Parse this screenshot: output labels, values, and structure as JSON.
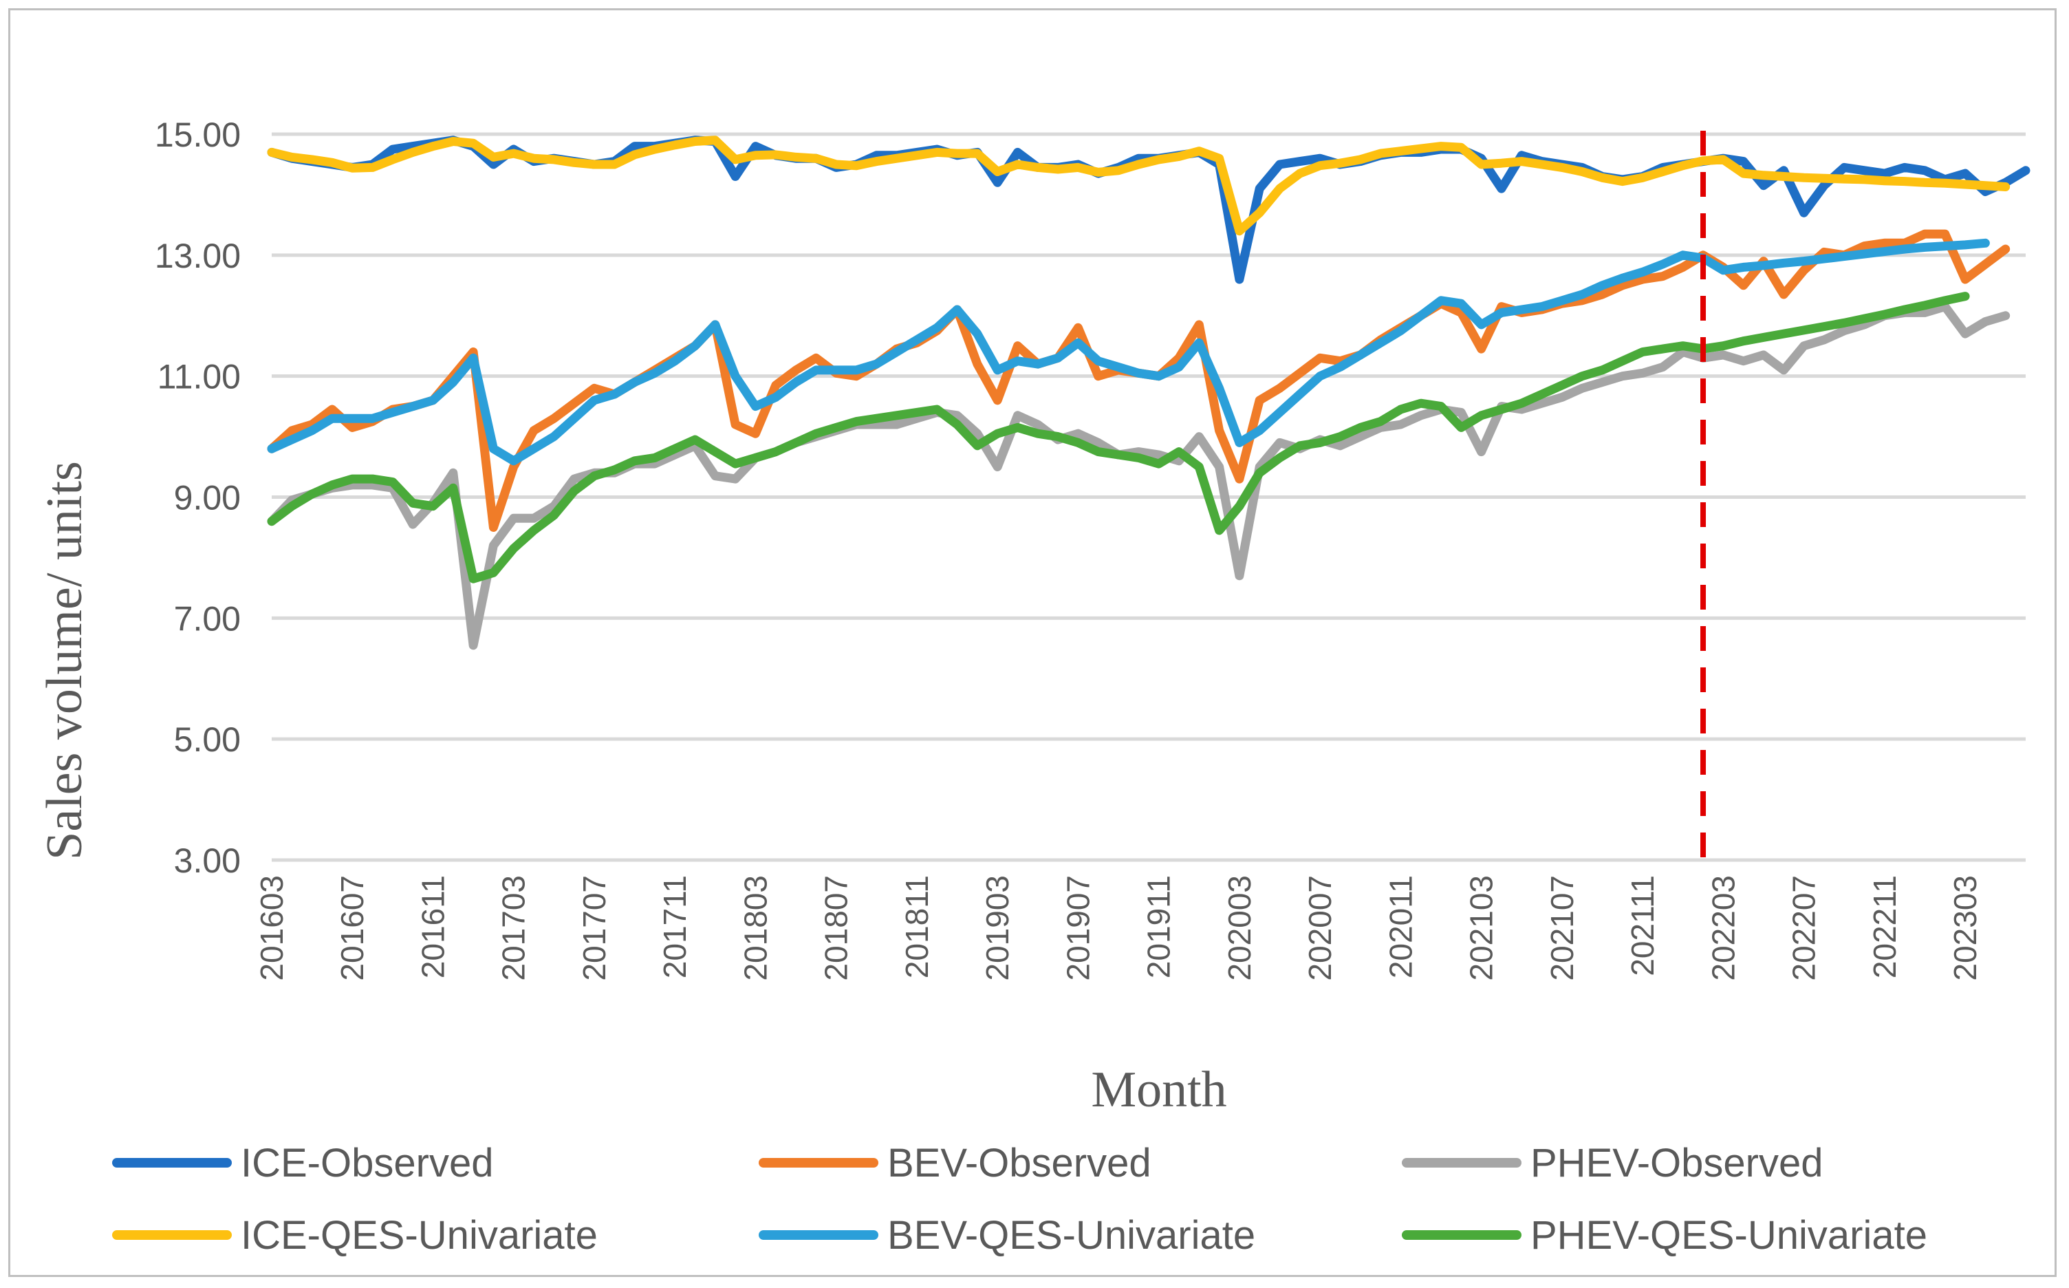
{
  "chart_data": {
    "type": "line",
    "title": "",
    "xlabel": "Month",
    "ylabel": "Sales volume/ units",
    "ylim": [
      3,
      15
    ],
    "yticks": [
      "3.00",
      "5.00",
      "7.00",
      "9.00",
      "11.00",
      "13.00",
      "15.00"
    ],
    "ytick_values": [
      3,
      5,
      7,
      9,
      11,
      13,
      15
    ],
    "xtick_labels": [
      "201603",
      "201607",
      "201611",
      "201703",
      "201707",
      "201711",
      "201803",
      "201807",
      "201811",
      "201903",
      "201907",
      "201911",
      "202003",
      "202007",
      "202011",
      "202103",
      "202107",
      "202111",
      "202203",
      "202207",
      "202211",
      "202303"
    ],
    "grid": true,
    "legend_position": "bottom",
    "forecast_start_label": "202203",
    "forecast_marker_color": "#e00000",
    "series": [
      {
        "name": "ICE-Observed",
        "color": "#1f6fc5",
        "values": [
          14.7,
          14.6,
          14.55,
          14.5,
          14.45,
          14.5,
          14.75,
          14.8,
          14.85,
          14.9,
          14.8,
          14.5,
          14.75,
          14.55,
          14.6,
          14.55,
          14.5,
          14.55,
          14.8,
          14.8,
          14.85,
          14.9,
          14.88,
          14.3,
          14.8,
          14.65,
          14.6,
          14.6,
          14.45,
          14.5,
          14.65,
          14.65,
          14.7,
          14.75,
          14.65,
          14.7,
          14.2,
          14.7,
          14.45,
          14.45,
          14.5,
          14.35,
          14.45,
          14.6,
          14.6,
          14.65,
          14.7,
          14.5,
          12.6,
          14.1,
          14.5,
          14.55,
          14.6,
          14.5,
          14.55,
          14.65,
          14.7,
          14.7,
          14.75,
          14.75,
          14.6,
          14.1,
          14.65,
          14.55,
          14.5,
          14.45,
          14.3,
          14.25,
          14.3,
          14.45,
          14.5,
          14.55,
          14.6,
          14.55,
          14.15,
          14.4,
          13.7,
          14.15,
          14.45,
          14.4,
          14.35,
          14.45,
          14.4,
          14.25,
          14.35,
          14.05,
          14.2,
          14.4
        ]
      },
      {
        "name": "BEV-Observed",
        "color": "#f07c28",
        "values": [
          9.8,
          10.1,
          10.2,
          10.45,
          10.15,
          10.25,
          10.45,
          10.5,
          10.6,
          11.0,
          11.4,
          8.5,
          9.5,
          10.1,
          10.3,
          10.55,
          10.8,
          10.7,
          10.9,
          11.1,
          11.3,
          11.5,
          11.85,
          10.2,
          10.05,
          10.85,
          11.1,
          11.3,
          11.05,
          11.0,
          11.2,
          11.45,
          11.55,
          11.75,
          12.1,
          11.2,
          10.6,
          11.5,
          11.2,
          11.3,
          11.8,
          11.0,
          11.1,
          11.05,
          11.0,
          11.3,
          11.85,
          10.1,
          9.3,
          10.6,
          10.8,
          11.05,
          11.3,
          11.25,
          11.35,
          11.6,
          11.8,
          12.0,
          12.2,
          12.05,
          11.45,
          12.15,
          12.05,
          12.1,
          12.2,
          12.25,
          12.35,
          12.5,
          12.6,
          12.65,
          12.8,
          13.0,
          12.8,
          12.5,
          12.9,
          12.35,
          12.75,
          13.05,
          13.0,
          13.15,
          13.2,
          13.2,
          13.35,
          13.35,
          12.6,
          12.85,
          13.1
        ]
      },
      {
        "name": "PHEV-Observed",
        "color": "#a5a5a5",
        "values": [
          8.6,
          8.95,
          9.05,
          9.15,
          9.2,
          9.2,
          9.15,
          8.55,
          8.9,
          9.4,
          6.55,
          8.2,
          8.65,
          8.65,
          8.85,
          9.3,
          9.4,
          9.4,
          9.55,
          9.55,
          9.7,
          9.85,
          9.35,
          9.3,
          9.65,
          9.75,
          9.9,
          10.0,
          10.1,
          10.2,
          10.2,
          10.2,
          10.3,
          10.4,
          10.35,
          10.05,
          9.5,
          10.35,
          10.2,
          9.95,
          10.05,
          9.9,
          9.7,
          9.75,
          9.7,
          9.6,
          10.0,
          9.5,
          7.7,
          9.5,
          9.9,
          9.8,
          9.95,
          9.85,
          10.0,
          10.15,
          10.2,
          10.35,
          10.45,
          10.4,
          9.75,
          10.5,
          10.45,
          10.55,
          10.65,
          10.8,
          10.9,
          11.0,
          11.05,
          11.15,
          11.4,
          11.3,
          11.35,
          11.25,
          11.35,
          11.1,
          11.5,
          11.6,
          11.75,
          11.85,
          12.0,
          12.05,
          12.05,
          12.15,
          11.7,
          11.9,
          12.0
        ]
      },
      {
        "name": "ICE-QES-Univariate",
        "color": "#fdc010",
        "values": [
          14.7,
          14.62,
          14.58,
          14.53,
          14.44,
          14.45,
          14.58,
          14.7,
          14.8,
          14.88,
          14.85,
          14.62,
          14.68,
          14.6,
          14.58,
          14.53,
          14.5,
          14.5,
          14.66,
          14.75,
          14.82,
          14.88,
          14.9,
          14.58,
          14.65,
          14.66,
          14.62,
          14.6,
          14.5,
          14.48,
          14.55,
          14.6,
          14.65,
          14.7,
          14.68,
          14.68,
          14.38,
          14.5,
          14.45,
          14.42,
          14.45,
          14.37,
          14.4,
          14.5,
          14.58,
          14.63,
          14.72,
          14.6,
          13.4,
          13.7,
          14.1,
          14.35,
          14.48,
          14.52,
          14.58,
          14.68,
          14.72,
          14.76,
          14.8,
          14.78,
          14.5,
          14.52,
          14.55,
          14.5,
          14.45,
          14.38,
          14.28,
          14.22,
          14.28,
          14.38,
          14.48,
          14.56,
          14.58,
          14.35,
          14.32,
          14.3,
          14.28,
          14.27,
          14.26,
          14.25,
          14.23,
          14.22,
          14.2,
          14.19,
          14.17,
          14.15,
          14.13
        ]
      },
      {
        "name": "BEV-QES-Univariate",
        "color": "#2b9fd9",
        "values": [
          9.8,
          9.95,
          10.1,
          10.3,
          10.3,
          10.3,
          10.4,
          10.5,
          10.6,
          10.9,
          11.3,
          9.8,
          9.6,
          9.8,
          10.0,
          10.3,
          10.6,
          10.7,
          10.9,
          11.05,
          11.25,
          11.5,
          11.85,
          11.0,
          10.5,
          10.65,
          10.9,
          11.1,
          11.1,
          11.1,
          11.2,
          11.4,
          11.6,
          11.8,
          12.1,
          11.7,
          11.1,
          11.25,
          11.2,
          11.3,
          11.55,
          11.25,
          11.15,
          11.05,
          11.0,
          11.15,
          11.55,
          10.8,
          9.9,
          10.1,
          10.4,
          10.7,
          11.0,
          11.15,
          11.35,
          11.55,
          11.75,
          12.0,
          12.25,
          12.2,
          11.85,
          12.05,
          12.1,
          12.15,
          12.25,
          12.35,
          12.5,
          12.62,
          12.72,
          12.85,
          13.0,
          12.95,
          12.75,
          12.8,
          12.83,
          12.87,
          12.9,
          12.94,
          12.98,
          13.02,
          13.06,
          13.1,
          13.13,
          13.15,
          13.17,
          13.2
        ]
      },
      {
        "name": "PHEV-QES-Univariate",
        "color": "#4aaa3a",
        "values": [
          8.6,
          8.85,
          9.05,
          9.2,
          9.3,
          9.3,
          9.25,
          8.9,
          8.85,
          9.15,
          7.65,
          7.75,
          8.15,
          8.45,
          8.7,
          9.1,
          9.35,
          9.45,
          9.6,
          9.65,
          9.8,
          9.95,
          9.75,
          9.55,
          9.65,
          9.75,
          9.9,
          10.05,
          10.15,
          10.25,
          10.3,
          10.35,
          10.4,
          10.45,
          10.2,
          9.85,
          10.05,
          10.15,
          10.05,
          10.0,
          9.9,
          9.75,
          9.7,
          9.65,
          9.55,
          9.75,
          9.5,
          8.45,
          8.85,
          9.4,
          9.65,
          9.85,
          9.9,
          10.0,
          10.15,
          10.25,
          10.45,
          10.55,
          10.5,
          10.15,
          10.35,
          10.45,
          10.55,
          10.7,
          10.85,
          11.0,
          11.1,
          11.25,
          11.4,
          11.45,
          11.5,
          11.45,
          11.5,
          11.58,
          11.64,
          11.7,
          11.76,
          11.82,
          11.88,
          11.95,
          12.02,
          12.1,
          12.17,
          12.25,
          12.32
        ]
      }
    ]
  }
}
